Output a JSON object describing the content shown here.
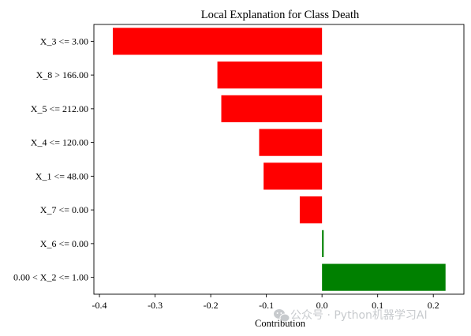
{
  "chart_data": {
    "type": "bar",
    "orientation": "horizontal",
    "title": "Local Explanation for Class Death",
    "xlabel": "Contribution",
    "ylabel": "",
    "categories": [
      "X_3 <= 3.00",
      "X_8 > 166.00",
      "X_5 <= 212.00",
      "X_4 <= 120.00",
      "X_1 <= 48.00",
      "X_7 <= 0.00",
      "X_6 <= 0.00",
      "0.00 < X_2 <= 1.00"
    ],
    "values": [
      -0.376,
      -0.188,
      -0.181,
      -0.113,
      -0.105,
      -0.04,
      0.003,
      0.222
    ],
    "xlim": [
      -0.41,
      0.255
    ],
    "xticks": [
      -0.4,
      -0.3,
      -0.2,
      -0.1,
      0.0,
      0.1,
      0.2
    ],
    "xtick_labels": [
      "-0.4",
      "-0.3",
      "-0.2",
      "-0.1",
      "0.0",
      "0.1",
      "0.2"
    ],
    "colors": {
      "negative": "#ff0000",
      "positive": "#008000"
    },
    "grid": false,
    "legend": "none"
  },
  "watermark": {
    "text": "公众号 · Python机器学习AI",
    "icon": "wechat-icon"
  }
}
